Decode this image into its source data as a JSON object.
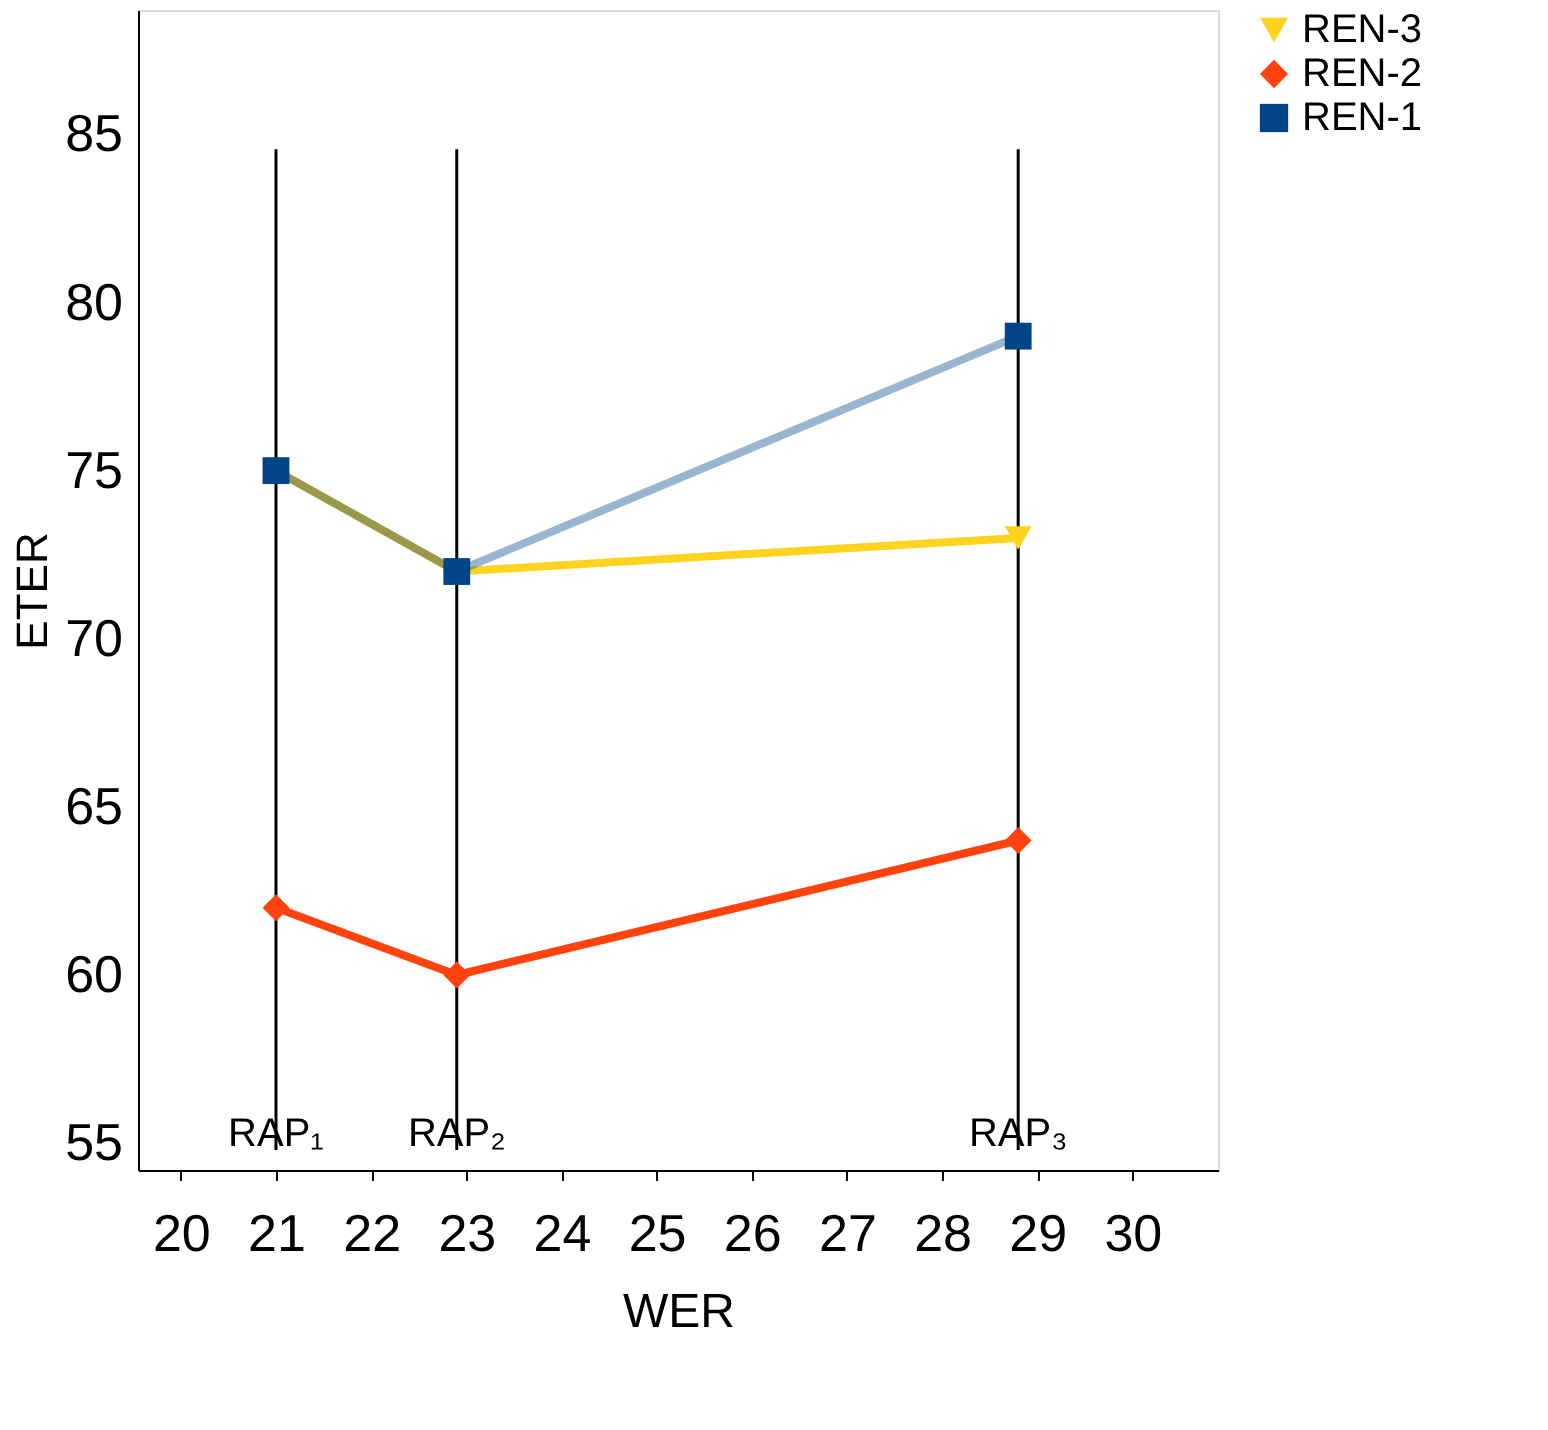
{
  "chart_data": {
    "type": "line",
    "xlabel": "WER",
    "ylabel": "ETER",
    "xlim": [
      19.55,
      30.9
    ],
    "xticks": [
      20,
      21,
      22,
      23,
      24,
      25,
      26,
      27,
      28,
      29,
      30
    ],
    "ylim": [
      54.2,
      88.7
    ],
    "yticks": [
      55,
      60,
      65,
      70,
      75,
      80,
      85
    ],
    "grid": false,
    "legend": "right",
    "line_style": "solid",
    "series": [
      {
        "name": "REN-3",
        "color": "#ffd320",
        "marker": "triangle-down",
        "x": [
          21,
          22.9,
          28.8
        ],
        "values": [
          75,
          72,
          73
        ]
      },
      {
        "name": "REN-2",
        "color": "#ff420e",
        "marker": "diamond",
        "x": [
          21,
          22.9,
          28.8
        ],
        "values": [
          62,
          60,
          64
        ]
      },
      {
        "name": "REN-1",
        "color": "#004586",
        "marker": "square",
        "x": [
          21,
          22.9,
          28.8
        ],
        "values": [
          75,
          72,
          79
        ]
      }
    ],
    "ref_lines": [
      {
        "axis": "x",
        "value": 21,
        "label": "RAP₁",
        "color": "#000000"
      },
      {
        "axis": "x",
        "value": 22.9,
        "label": "RAP₂",
        "color": "#000000"
      },
      {
        "axis": "x",
        "value": 28.8,
        "label": "RAP₃",
        "color": "#000000"
      }
    ]
  }
}
